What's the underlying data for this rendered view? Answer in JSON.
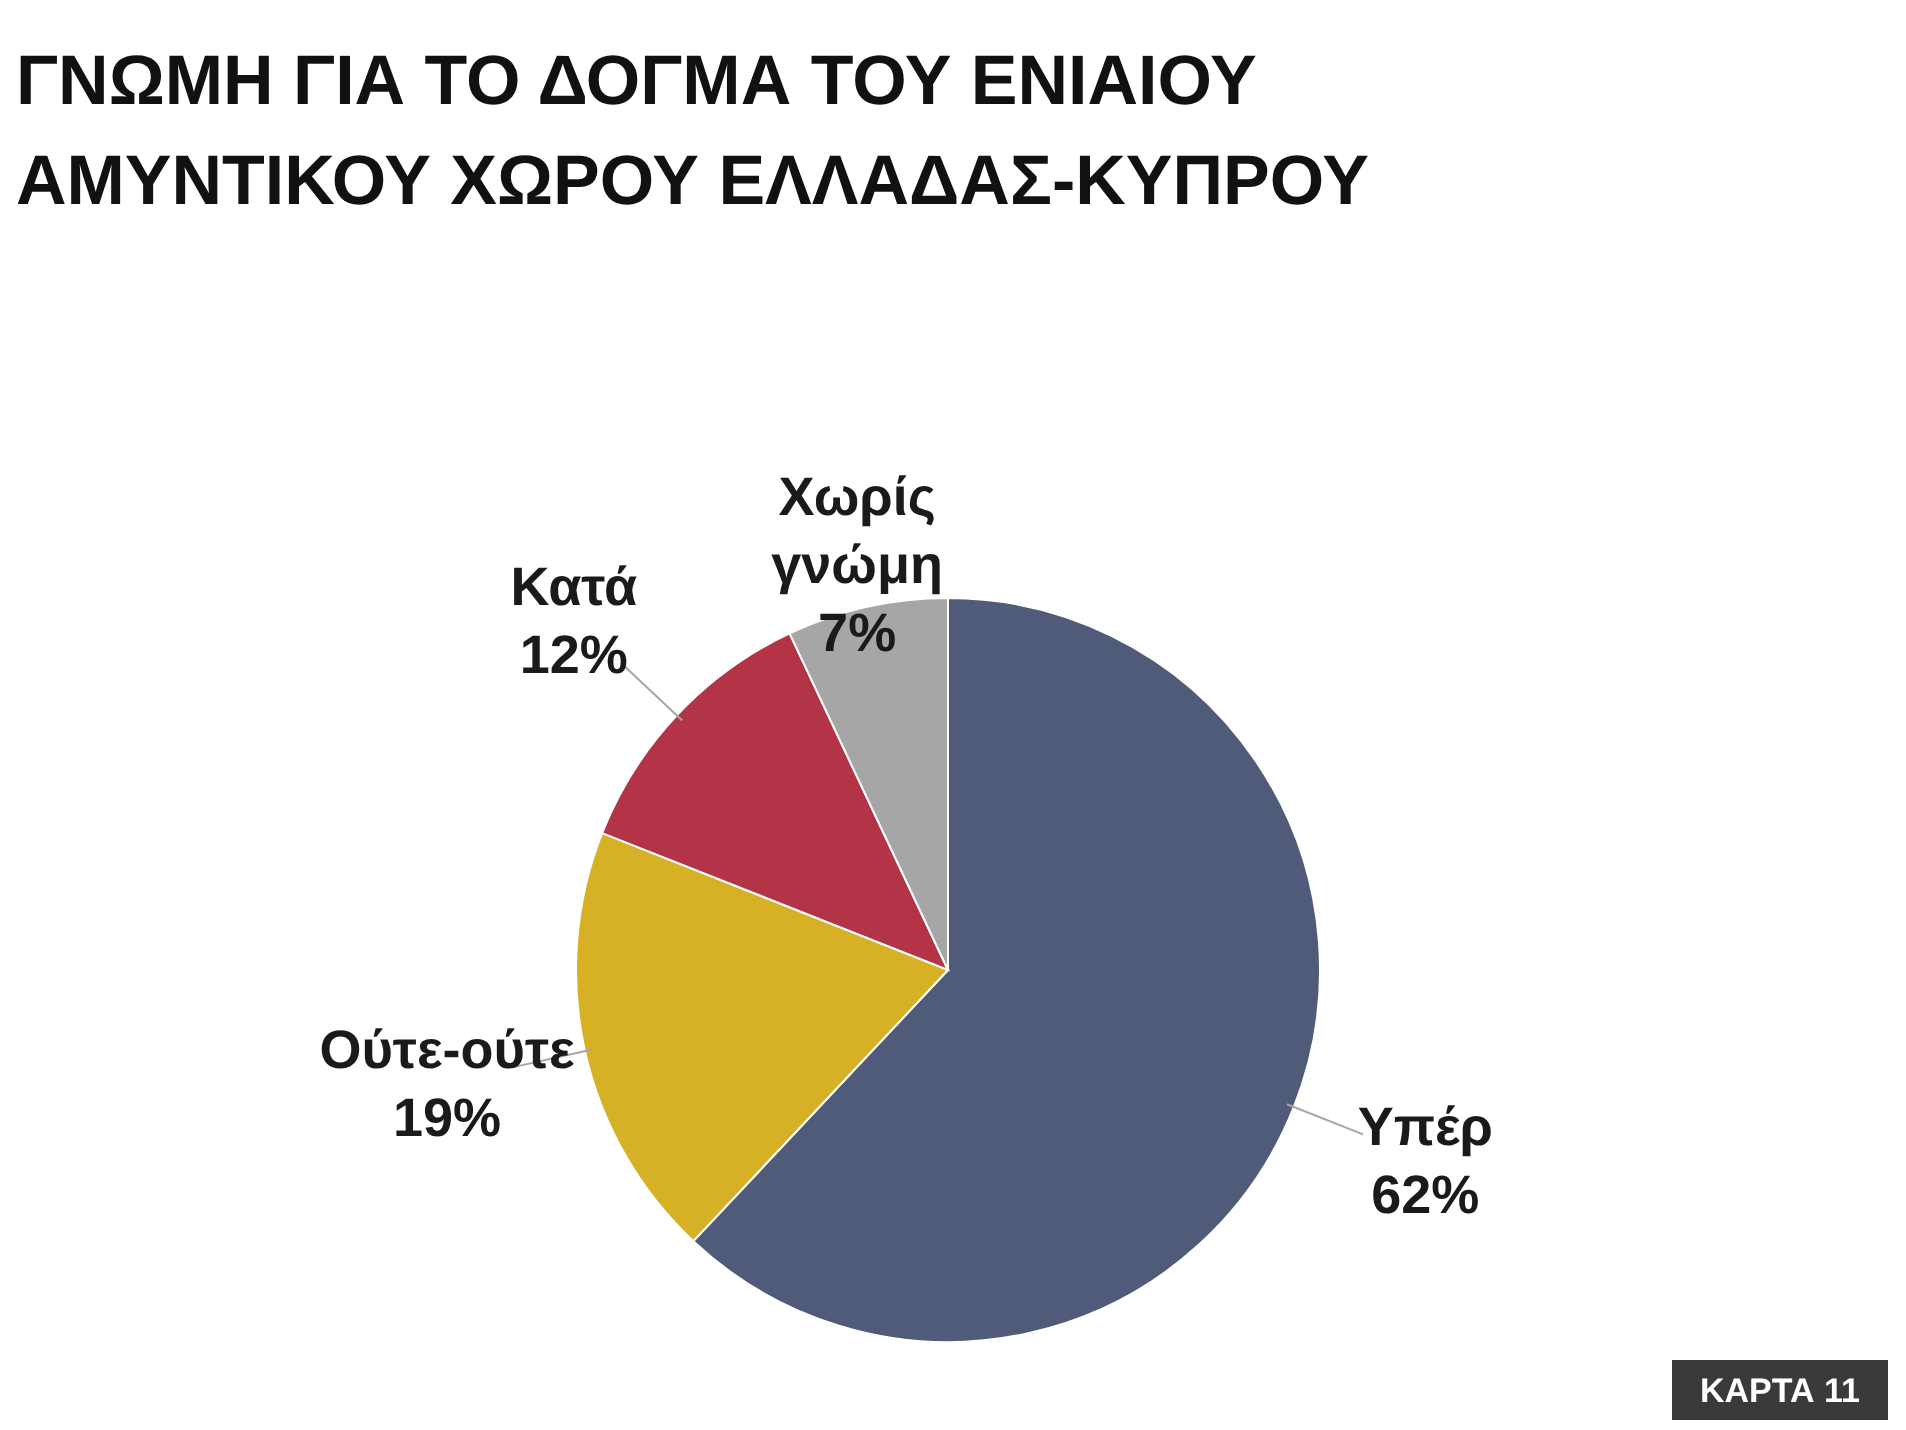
{
  "chart_data": {
    "type": "pie",
    "title": "ΓΝΩΜΗ ΓΙΑ ΤΟ ΔΟΓΜΑ ΤΟΥ ΕΝΙΑΙΟΥ ΑΜΥΝΤΙΚΟΥ ΧΩΡΟΥ ΕΛΛΑΔΑΣ-ΚΥΠΡΟΥ",
    "categories": [
      "Υπέρ",
      "Ούτε-ούτε",
      "Κατά",
      "Χωρίς γνώμη"
    ],
    "values": [
      62,
      19,
      12,
      7
    ],
    "value_labels": [
      "62%",
      "19%",
      "12%",
      "7%"
    ],
    "colors": [
      "#4f5b78",
      "#d6b125",
      "#b23446",
      "#a6a6a6"
    ],
    "annotations": [
      "ΚΑΡΤΑ 11"
    ]
  }
}
